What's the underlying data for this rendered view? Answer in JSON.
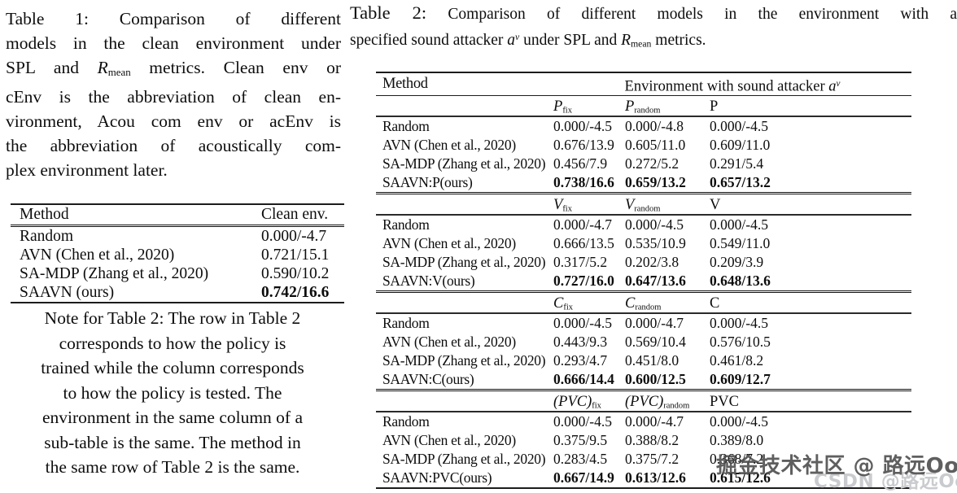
{
  "table1": {
    "caption": {
      "l1a": "Table 1:",
      "l1b": " Comparison of different",
      "l2": "models in the clean environment under",
      "l3a": "SPL and ",
      "l3_r": "R",
      "l3_rsub": "mean",
      "l3b": " metrics. Clean env or",
      "l4": "cEnv is the abbreviation of clean en-",
      "l5": "vironment, Acou com env or acEnv is",
      "l6": "the abbreviation of acoustically com-",
      "l7": "plex environment later."
    },
    "headers": {
      "method": "Method",
      "value": "Clean env."
    },
    "rows": [
      {
        "method": "Random",
        "value": "0.000/-4.7"
      },
      {
        "method": "AVN (Chen et al., 2020)",
        "value": "0.721/15.1"
      },
      {
        "method": "SA-MDP (Zhang et al., 2020)",
        "value": "0.590/10.2"
      },
      {
        "method": "SAAVN (ours)",
        "value": "0.742/16.6",
        "bold": true
      }
    ]
  },
  "note": {
    "lines": [
      {
        "t": "Note for Table 2: The row in Table 2"
      },
      {
        "t": "corresponds to how the policy is"
      },
      {
        "t": "trained while the column corresponds"
      },
      {
        "t": "to how the policy is tested. The"
      },
      {
        "t": "environment in the same column of a"
      },
      {
        "t": "sub-table is the same. The method in"
      },
      {
        "t": "the same row of Table 2 is the same."
      }
    ]
  },
  "table2": {
    "caption": {
      "label": "Table 2:",
      "l1": " Comparison of different models in the environment with a",
      "l2a": "specified sound attacker ",
      "a_sym": "a",
      "a_sup": "ν",
      "l2b": " under SPL and ",
      "r_sym": "R",
      "r_sub": "mean",
      "l2c": " metrics."
    },
    "header": {
      "method": "Method",
      "span_a": "Environment with sound attacker ",
      "a_sym": "a",
      "a_sup": "ν"
    },
    "subtables": [
      {
        "h1_sym": "P",
        "h1_sub": "fix",
        "h2_sym": "P",
        "h2_sub": "random",
        "h3": "P",
        "rows": [
          {
            "method": "Random",
            "c1": "0.000/-4.5",
            "c2": "0.000/-4.8",
            "c3": "0.000/-4.5"
          },
          {
            "method": "AVN (Chen et al., 2020)",
            "c1": "0.676/13.9",
            "c2": "0.605/11.0",
            "c3": "0.609/11.0"
          },
          {
            "method": "SA-MDP (Zhang et al., 2020)",
            "c1": "0.456/7.9",
            "c2": "0.272/5.2",
            "c3": "0.291/5.4"
          },
          {
            "method": "SAAVN:P(ours)",
            "c1": "0.738/16.6",
            "c2": "0.659/13.2",
            "c3": "0.657/13.2",
            "bold": true
          }
        ]
      },
      {
        "h1_sym": "V",
        "h1_sub": "fix",
        "h2_sym": "V",
        "h2_sub": "random",
        "h3": "V",
        "rows": [
          {
            "method": "Random",
            "c1": "0.000/-4.7",
            "c2": "0.000/-4.5",
            "c3": "0.000/-4.5"
          },
          {
            "method": "AVN (Chen et al., 2020)",
            "c1": "0.666/13.5",
            "c2": "0.535/10.9",
            "c3": "0.549/11.0"
          },
          {
            "method": "SA-MDP (Zhang et al., 2020)",
            "c1": "0.317/5.2",
            "c2": "0.202/3.8",
            "c3": "0.209/3.9"
          },
          {
            "method": "SAAVN:V(ours)",
            "c1": "0.727/16.0",
            "c2": "0.647/13.6",
            "c3": "0.648/13.6",
            "bold": true
          }
        ]
      },
      {
        "h1_sym": "C",
        "h1_sub": "fix",
        "h2_sym": "C",
        "h2_sub": "random",
        "h3": "C",
        "rows": [
          {
            "method": "Random",
            "c1": "0.000/-4.5",
            "c2": "0.000/-4.7",
            "c3": "0.000/-4.5"
          },
          {
            "method": "AVN (Chen et al., 2020)",
            "c1": "0.443/9.3",
            "c2": "0.569/10.4",
            "c3": "0.576/10.5"
          },
          {
            "method": "SA-MDP (Zhang et al., 2020)",
            "c1": "0.293/4.7",
            "c2": "0.451/8.0",
            "c3": "0.461/8.2"
          },
          {
            "method": "SAAVN:C(ours)",
            "c1": "0.666/14.4",
            "c2": "0.600/12.5",
            "c3": "0.609/12.7",
            "bold": true
          }
        ]
      },
      {
        "h1_sym": "(PVC)",
        "h1_sub": "fix",
        "h2_sym": "(PVC)",
        "h2_sub": "random",
        "h3": "PVC",
        "rows": [
          {
            "method": "Random",
            "c1": "0.000/-4.5",
            "c2": "0.000/-4.7",
            "c3": "0.000/-4.5"
          },
          {
            "method": "AVN (Chen et al., 2020)",
            "c1": "0.375/9.5",
            "c2": "0.388/8.2",
            "c3": "0.389/8.0"
          },
          {
            "method": "SA-MDP (Zhang et al., 2020)",
            "c1": "0.283/4.5",
            "c2": "0.375/7.2",
            "c3": "0.368/7.2"
          },
          {
            "method": "SAAVN:PVC(ours)",
            "c1": "0.667/14.9",
            "c2": "0.613/12.6",
            "c3": "0.615/12.6",
            "bold": true
          }
        ]
      }
    ]
  },
  "watermark": {
    "line1": "掘金技术社区 @ 路远Oo",
    "line2": "CSDN @路远Oo"
  }
}
